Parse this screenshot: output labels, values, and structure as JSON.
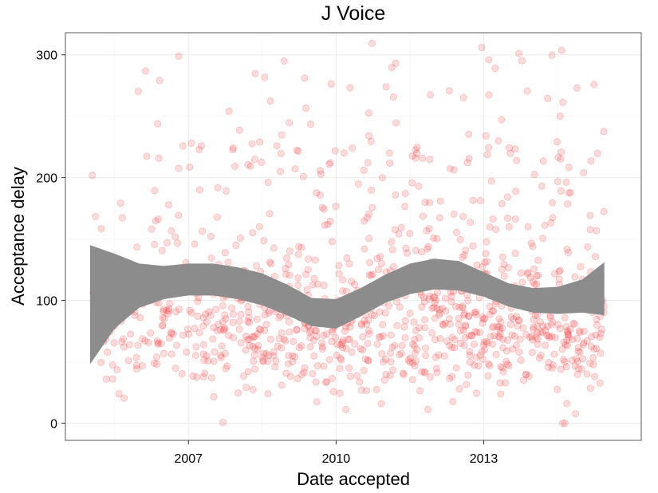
{
  "chart_data": {
    "type": "scatter",
    "title": "J Voice",
    "xlabel": "Date accepted",
    "ylabel": "Acceptance delay",
    "x_ticks": [
      2007,
      2010,
      2013
    ],
    "y_ticks": [
      0,
      100,
      200,
      300
    ],
    "xlim": [
      2004.5,
      2016.2
    ],
    "ylim": [
      -14,
      318
    ],
    "grid": true,
    "legend": "none",
    "point_color": "#f8766d",
    "point_alpha": 0.2,
    "smooth_band_color": "#8c8c8c",
    "smooth_band": {
      "x": [
        2005.0,
        2005.5,
        2006.0,
        2006.5,
        2007.0,
        2007.5,
        2008.0,
        2008.5,
        2009.0,
        2009.5,
        2010.0,
        2010.5,
        2011.0,
        2011.5,
        2012.0,
        2012.5,
        2013.0,
        2013.5,
        2014.0,
        2014.5,
        2015.0,
        2015.45
      ],
      "lower": [
        48,
        77,
        94,
        101,
        104,
        104,
        101,
        96,
        88,
        79,
        77,
        87,
        98,
        105,
        109,
        108,
        103,
        95,
        90,
        89,
        90,
        88
      ],
      "upper": [
        145,
        138,
        130,
        128,
        130,
        130,
        127,
        122,
        113,
        102,
        101,
        110,
        121,
        130,
        134,
        132,
        123,
        114,
        110,
        111,
        117,
        131
      ]
    },
    "points_seed": 20240611,
    "points_count": 1100
  }
}
